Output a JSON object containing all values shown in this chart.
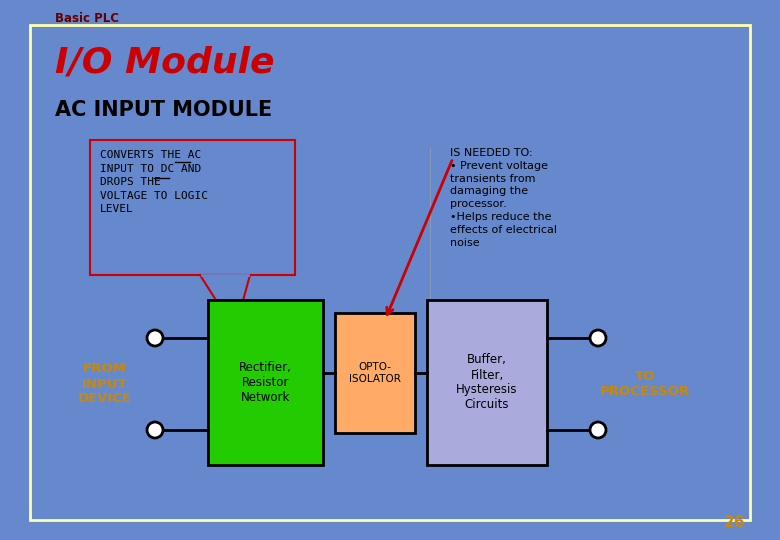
{
  "bg_color": "#6688cc",
  "border_color": "#ffffaa",
  "header_text": "Basic PLC",
  "header_color": "#660000",
  "title_text": "I/O Module",
  "title_color": "#cc0000",
  "subtitle_text": "AC INPUT MODULE",
  "subtitle_color": "#000000",
  "callout_text": "CONVERTS THE AC\nINPUT TO DC AND\nDROPS THE\nVOLTAGE TO LOGIC\nLEVEL",
  "callout_border": "#cc0000",
  "callout_bg": "#6688cc",
  "info_text": "IS NEEDED TO:\n• Prevent voltage\ntransients from\ndamaging the\nprocessor.\n•Helps reduce the\neffects of electrical\nnoise",
  "info_color": "#000000",
  "green_label": "Rectifier,\nResistor\nNetwork",
  "green_color": "#22cc00",
  "orange_label": "OPTO-\nISOLATOR",
  "orange_color": "#ffaa66",
  "purple_label": "Buffer,\nFilter,\nHysteresis\nCircuits",
  "purple_color": "#aaaadd",
  "from_label": "FROM\nINPUT\nDEVICE",
  "from_color": "#cc8800",
  "to_label": "TO\nPROCESSOR",
  "to_color": "#cc8800",
  "page_num": "26",
  "page_color": "#cc8800",
  "line_color": "#000000",
  "red_arrow_color": "#cc0000"
}
